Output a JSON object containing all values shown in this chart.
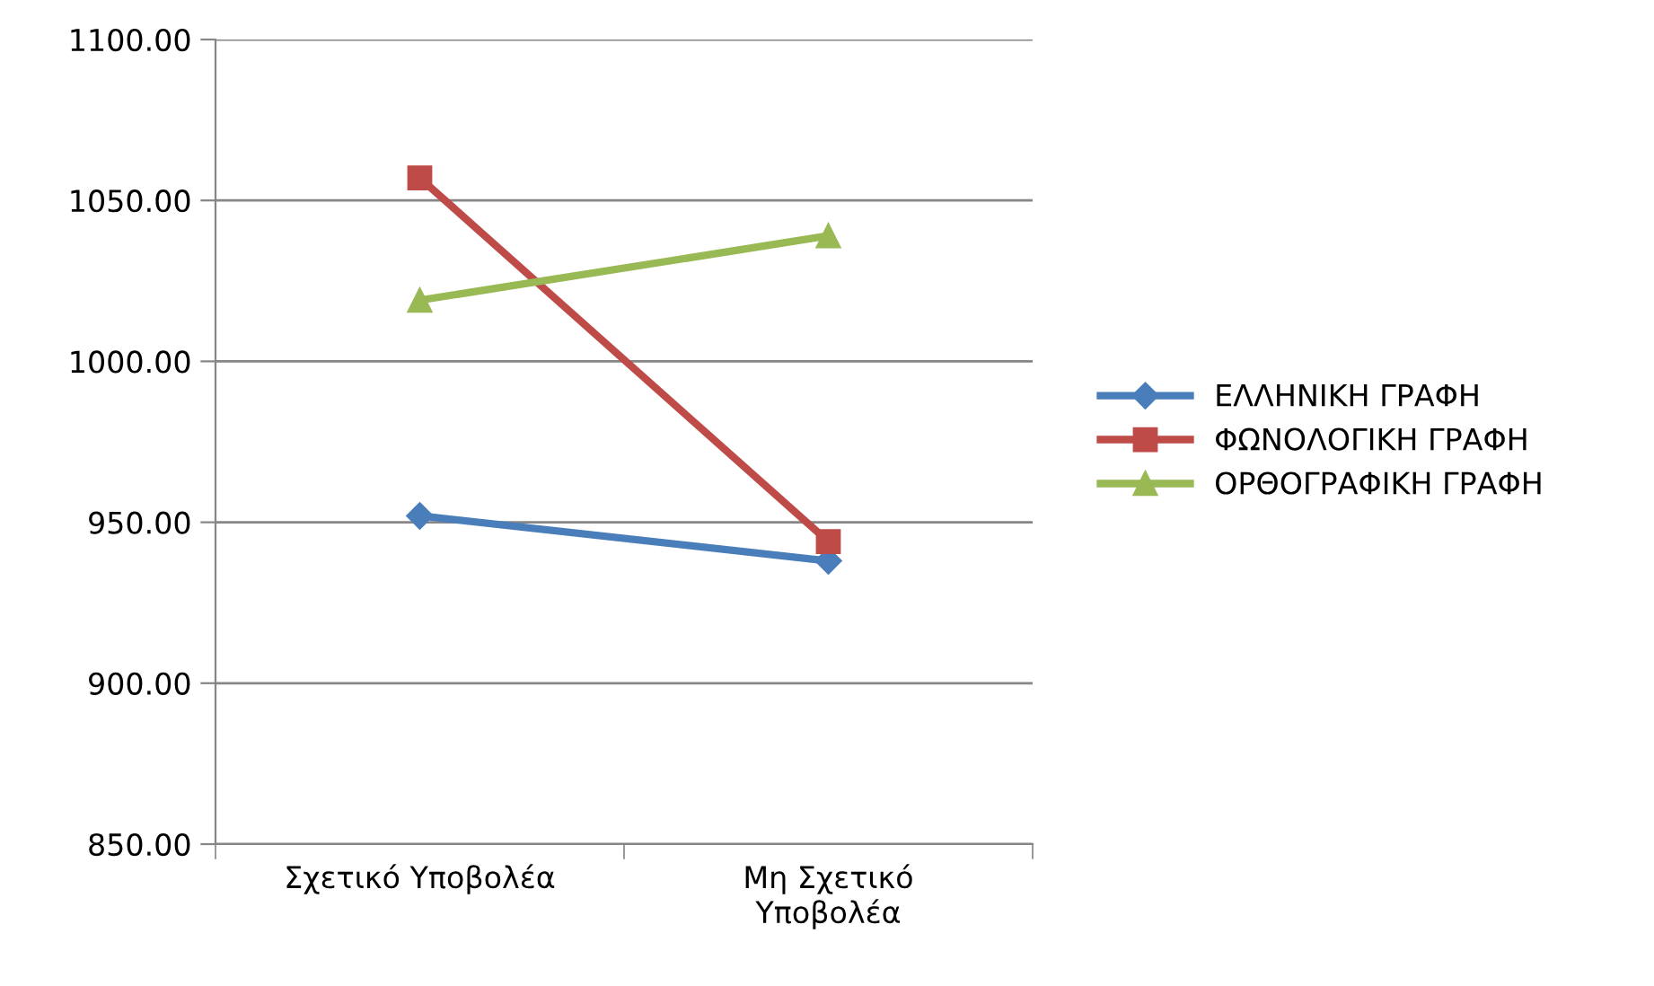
{
  "chart_data": {
    "type": "line",
    "categories": [
      "Σχετικό Υποβολέα",
      "Μη Σχετικό\nΥποβολέα"
    ],
    "series": [
      {
        "name": "ΕΛΛΗΝΙΚΗ ΓΡΑΦΗ",
        "color": "#4a7ebb",
        "marker": "diamond",
        "values": [
          952,
          938
        ]
      },
      {
        "name": "ΦΩΝΟΛΟΓΙΚΗ ΓΡΑΦΗ",
        "color": "#be4b48",
        "marker": "square",
        "values": [
          1057,
          944
        ]
      },
      {
        "name": "ΟΡΘΟΓΡΑΦΙΚΗ ΓΡΑΦΗ",
        "color": "#98b954",
        "marker": "triangle",
        "values": [
          1019,
          1039
        ]
      }
    ],
    "ylim": [
      850,
      1100
    ],
    "yticks": [
      {
        "value": 850,
        "label": "850.00"
      },
      {
        "value": 900,
        "label": "900.00"
      },
      {
        "value": 950,
        "label": "950.00"
      },
      {
        "value": 1000,
        "label": "1000.00"
      },
      {
        "value": 1050,
        "label": "1050.00"
      },
      {
        "value": 1100,
        "label": "1100.00"
      }
    ],
    "grid": "y",
    "legend": "right",
    "line_style": "solid"
  }
}
